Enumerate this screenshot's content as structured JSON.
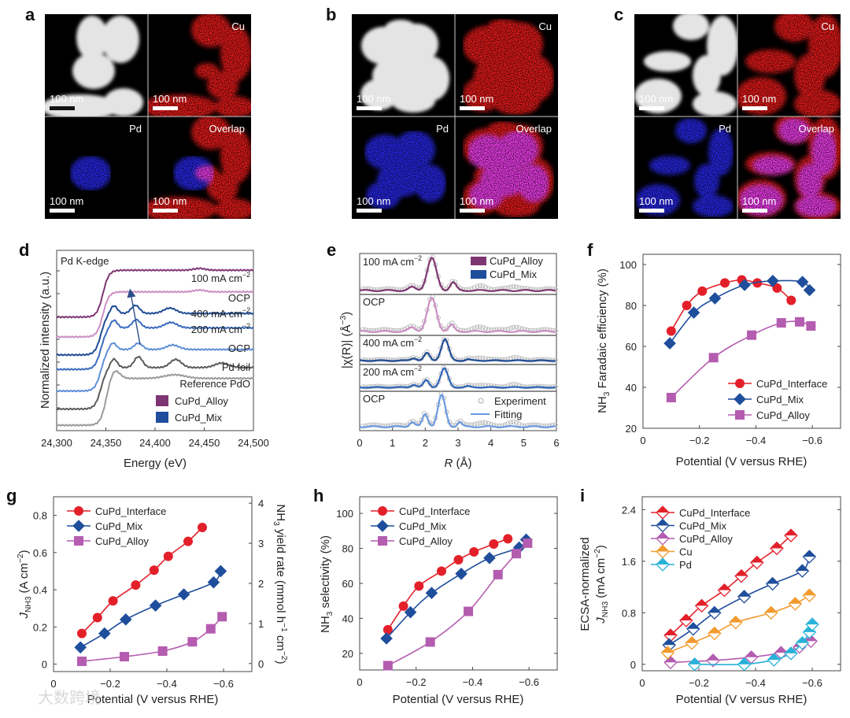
{
  "figure": {
    "panel_letters": {
      "a": "a",
      "b": "b",
      "c": "c",
      "d": "d",
      "e": "e",
      "f": "f",
      "g": "g",
      "h": "h",
      "i": "i"
    },
    "micrographs": [
      {
        "panel": "a",
        "cu_label": "Cu",
        "pd_label": "Pd",
        "overlap_label": "Overlap",
        "scale_bar": "100 nm"
      },
      {
        "panel": "b",
        "cu_label": "Cu",
        "pd_label": "Pd",
        "overlap_label": "Overlap",
        "scale_bar": "100 nm"
      },
      {
        "panel": "c",
        "cu_label": "Cu",
        "pd_label": "Pd",
        "overlap_label": "Overlap",
        "scale_bar": "100 nm"
      }
    ],
    "watermark": "大数跨境"
  },
  "colors": {
    "interface": "#e3202a",
    "mix": "#1f4e9c",
    "alloy": "#b45cb0",
    "cu": "#f39a2e",
    "pd": "#29b2d9"
  },
  "chart_data": [
    {
      "panel": "d",
      "type": "line",
      "title": "",
      "annotation": "Pd K-edge",
      "xlabel": "Energy (eV)",
      "ylabel": "Normalized intensity (a.u.)",
      "xlim": [
        24300,
        24500
      ],
      "ylim": [
        0,
        10
      ],
      "xticks": [
        24300,
        24350,
        24400,
        24450,
        24500
      ],
      "xtick_labels": [
        "24,300",
        "24,350",
        "24,400",
        "24,450",
        "24,500"
      ],
      "series": [
        {
          "name": "CuPd_Alloy 100 mA cm-2",
          "label_parts": [
            {
              "t": "100 mA cm"
            },
            {
              "t": "−2",
              "sup": true
            }
          ],
          "color": "#7e3672",
          "offset": 6.3,
          "step": 2.6,
          "edge": 24347,
          "peaks": [
            [
              24445,
              0.1,
              8
            ]
          ]
        },
        {
          "name": "CuPd_Alloy OCP",
          "label_parts": [
            {
              "t": "OCP"
            }
          ],
          "color": "#cc8fc4",
          "offset": 5.2,
          "step": 2.5,
          "edge": 24347,
          "peaks": [
            [
              24445,
              0.1,
              8
            ]
          ]
        },
        {
          "name": "CuPd_Mix 400 mA cm-2",
          "label_parts": [
            {
              "t": "400 mA cm"
            },
            {
              "t": "−2",
              "sup": true
            }
          ],
          "color": "#1f4c96",
          "offset": 4.2,
          "step": 2.3,
          "edge": 24345,
          "peaks": [
            [
              24358,
              0.45,
              5
            ],
            [
              24380,
              0.45,
              6
            ],
            [
              24415,
              0.3,
              9
            ]
          ]
        },
        {
          "name": "CuPd_Mix 200 mA cm-2",
          "label_parts": [
            {
              "t": "200 mA cm"
            },
            {
              "t": "−2",
              "sup": true
            }
          ],
          "color": "#3a6cc0",
          "offset": 3.4,
          "step": 2.3,
          "edge": 24345,
          "peaks": [
            [
              24358,
              0.45,
              5
            ],
            [
              24381,
              0.45,
              6
            ],
            [
              24416,
              0.3,
              9
            ]
          ]
        },
        {
          "name": "CuPd_Mix OCP",
          "label_parts": [
            {
              "t": "OCP"
            }
          ],
          "color": "#5d8fd8",
          "offset": 2.2,
          "step": 2.3,
          "edge": 24345,
          "peaks": [
            [
              24357,
              0.4,
              5
            ],
            [
              24383,
              0.35,
              6
            ],
            [
              24418,
              0.25,
              9
            ]
          ]
        },
        {
          "name": "Pd foil",
          "label_parts": [
            {
              "t": "Pd foil"
            }
          ],
          "color": "#5a5a5a",
          "offset": 1.2,
          "step": 2.3,
          "edge": 24345,
          "peaks": [
            [
              24358,
              0.5,
              5
            ],
            [
              24383,
              0.6,
              6
            ],
            [
              24421,
              0.45,
              8
            ],
            [
              24468,
              0.25,
              10
            ]
          ]
        },
        {
          "name": "Reference PdO",
          "label_parts": [
            {
              "t": "Reference PdO"
            }
          ],
          "color": "#9a9a9a",
          "offset": 0.3,
          "step": 2.6,
          "edge": 24350,
          "peaks": [
            [
              24359,
              0.5,
              7
            ],
            [
              24420,
              0.2,
              15
            ]
          ]
        }
      ],
      "legend": [
        {
          "label": "CuPd_Alloy",
          "color": "#7e3672"
        },
        {
          "label": "CuPd_Mix",
          "color": "#1f4e9c"
        }
      ]
    },
    {
      "panel": "e",
      "type": "line",
      "title": "",
      "xlabel_parts": [
        {
          "t": "R",
          "it": true
        },
        {
          "t": " (Å)"
        }
      ],
      "ylabel_parts": [
        {
          "t": "|χ(R)| (Å"
        },
        {
          "t": "−3",
          "sup": true
        },
        {
          "t": ")"
        }
      ],
      "xlim": [
        0,
        6
      ],
      "xticks": [
        0,
        1,
        2,
        3,
        4,
        5,
        6
      ],
      "xtick_labels": [
        "0",
        "1",
        "2",
        "3",
        "4",
        "5",
        "6"
      ],
      "series": [
        {
          "name": "CuPd_Alloy 100 mA cm-2",
          "label_parts": [
            {
              "t": "100 mA cm"
            },
            {
              "t": "−2",
              "sup": true
            }
          ],
          "color": "#7e3672",
          "peaks": [
            [
              2.2,
              1.0,
              0.2
            ],
            [
              2.85,
              0.25,
              0.13
            ],
            [
              1.6,
              0.1,
              0.15
            ]
          ]
        },
        {
          "name": "CuPd_Alloy OCP",
          "label_parts": [
            {
              "t": "OCP"
            }
          ],
          "color": "#cc8fc4",
          "peaks": [
            [
              2.2,
              1.0,
              0.2
            ],
            [
              2.8,
              0.2,
              0.12
            ],
            [
              1.6,
              0.12,
              0.15
            ]
          ]
        },
        {
          "name": "CuPd_Mix 400 mA cm-2",
          "label_parts": [
            {
              "t": "400 mA cm"
            },
            {
              "t": "−2",
              "sup": true
            }
          ],
          "color": "#1f4c96",
          "peaks": [
            [
              2.6,
              1.0,
              0.16
            ],
            [
              2.05,
              0.35,
              0.12
            ],
            [
              1.65,
              0.12,
              0.12
            ],
            [
              3.3,
              0.06,
              0.1
            ]
          ]
        },
        {
          "name": "CuPd_Mix 200 mA cm-2",
          "label_parts": [
            {
              "t": "200 mA cm"
            },
            {
              "t": "−2",
              "sup": true
            }
          ],
          "color": "#2f64b8",
          "peaks": [
            [
              2.58,
              1.0,
              0.16
            ],
            [
              2.03,
              0.38,
              0.12
            ],
            [
              1.65,
              0.14,
              0.12
            ],
            [
              3.3,
              0.06,
              0.1
            ]
          ]
        },
        {
          "name": "CuPd_Mix OCP",
          "label_parts": [
            {
              "t": "OCP"
            }
          ],
          "color": "#6a9ae0",
          "peaks": [
            [
              2.5,
              1.0,
              0.16
            ],
            [
              2.0,
              0.4,
              0.12
            ],
            [
              1.6,
              0.15,
              0.12
            ],
            [
              3.05,
              0.15,
              0.1
            ]
          ]
        }
      ],
      "legend": [
        {
          "label": "CuPd_Alloy",
          "color": "#7e3672"
        },
        {
          "label": "CuPd_Mix",
          "color": "#1f4e9c"
        }
      ],
      "legend2": [
        {
          "label": "Experiment",
          "marker": "open-circle"
        },
        {
          "label": "Fitting",
          "marker": "line"
        }
      ]
    },
    {
      "panel": "f",
      "type": "line",
      "title": "",
      "xlabel": "Potential (V versus RHE)",
      "ylabel_parts": [
        {
          "t": "NH"
        },
        {
          "t": "3",
          "sub": true
        },
        {
          "t": " Faradaic efficiency (%)"
        }
      ],
      "xlim": [
        0,
        -0.7
      ],
      "ylim": [
        20,
        105
      ],
      "xticks": [
        0,
        -0.2,
        -0.4,
        -0.6
      ],
      "xtick_labels": [
        "0",
        "−0.2",
        "−0.4",
        "−0.6"
      ],
      "yticks": [
        20,
        40,
        60,
        80,
        100
      ],
      "ytick_labels": [
        "20",
        "40",
        "60",
        "80",
        "100"
      ],
      "legend_position": "bottom-right",
      "series": [
        {
          "name": "CuPd_Interface",
          "marker": "circle",
          "color": "#e3202a",
          "x": [
            -0.1,
            -0.155,
            -0.21,
            -0.29,
            -0.35,
            -0.405,
            -0.475,
            -0.525
          ],
          "y": [
            67.5,
            80,
            87,
            91,
            92.5,
            91,
            88.5,
            82.5
          ]
        },
        {
          "name": "CuPd_Mix",
          "marker": "diamond",
          "color": "#1f4e9c",
          "x": [
            -0.095,
            -0.18,
            -0.255,
            -0.36,
            -0.46,
            -0.565,
            -0.59
          ],
          "y": [
            61.5,
            76.5,
            83.5,
            90,
            92,
            91.5,
            87.5
          ]
        },
        {
          "name": "CuPd_Alloy",
          "marker": "square",
          "color": "#b45cb0",
          "x": [
            -0.1,
            -0.25,
            -0.385,
            -0.49,
            -0.555,
            -0.595
          ],
          "y": [
            35,
            54.5,
            65.5,
            71.5,
            72,
            70
          ]
        }
      ]
    },
    {
      "panel": "g",
      "type": "line",
      "title": "",
      "xlabel": "Potential (V versus RHE)",
      "ylabel_parts": [
        {
          "t": "J",
          "it": true
        },
        {
          "t": "NH3",
          "sub": true
        },
        {
          "t": " (A cm"
        },
        {
          "t": "−2",
          "sup": true
        },
        {
          "t": ")"
        }
      ],
      "y2label_parts": [
        {
          "t": "NH"
        },
        {
          "t": "3",
          "sub": true
        },
        {
          "t": " yield rate (mmol h"
        },
        {
          "t": "−1",
          "sup": true
        },
        {
          "t": " cm"
        },
        {
          "t": "−2",
          "sup": true
        },
        {
          "t": ")"
        }
      ],
      "xlim": [
        0,
        -0.7
      ],
      "ylim": [
        -0.04,
        0.9
      ],
      "y2lim": [
        -0.2,
        4.16
      ],
      "xticks": [
        0,
        -0.2,
        -0.4,
        -0.6
      ],
      "xtick_labels": [
        "0",
        "−0.2",
        "−0.4",
        "−0.6"
      ],
      "yticks": [
        0,
        0.2,
        0.4,
        0.6,
        0.8
      ],
      "ytick_labels": [
        "0",
        "0.2",
        "0.4",
        "0.6",
        "0.8"
      ],
      "y2ticks": [
        0,
        1,
        2,
        3,
        4
      ],
      "y2tick_labels": [
        "0",
        "1",
        "2",
        "3",
        "4"
      ],
      "legend_position": "top-left",
      "series": [
        {
          "name": "CuPd_Interface",
          "marker": "circle",
          "color": "#e3202a",
          "x": [
            -0.1,
            -0.155,
            -0.21,
            -0.29,
            -0.355,
            -0.405,
            -0.475,
            -0.525
          ],
          "y": [
            0.165,
            0.25,
            0.34,
            0.425,
            0.505,
            0.58,
            0.66,
            0.735
          ]
        },
        {
          "name": "CuPd_Mix",
          "marker": "diamond",
          "color": "#1f4e9c",
          "x": [
            -0.095,
            -0.18,
            -0.255,
            -0.36,
            -0.46,
            -0.565,
            -0.59
          ],
          "y": [
            0.09,
            0.165,
            0.24,
            0.315,
            0.375,
            0.44,
            0.5
          ]
        },
        {
          "name": "CuPd_Alloy",
          "marker": "square",
          "color": "#b45cb0",
          "x": [
            -0.1,
            -0.25,
            -0.385,
            -0.49,
            -0.555,
            -0.595
          ],
          "y": [
            0.015,
            0.04,
            0.07,
            0.12,
            0.19,
            0.255
          ]
        }
      ]
    },
    {
      "panel": "h",
      "type": "line",
      "title": "",
      "xlabel": "Potential (V versus RHE)",
      "ylabel_parts": [
        {
          "t": "NH"
        },
        {
          "t": "3",
          "sub": true
        },
        {
          "t": " selectivity (%)"
        }
      ],
      "xlim": [
        0,
        -0.7
      ],
      "ylim": [
        10.5,
        109.5
      ],
      "xticks": [
        0,
        -0.2,
        -0.4,
        -0.6
      ],
      "xtick_labels": [
        "0",
        "−0.2",
        "−0.4",
        "−0.6"
      ],
      "yticks": [
        20,
        40,
        60,
        80,
        100
      ],
      "ytick_labels": [
        "20",
        "40",
        "60",
        "80",
        "100"
      ],
      "legend_position": "top-left",
      "series": [
        {
          "name": "CuPd_Interface",
          "marker": "circle",
          "color": "#e3202a",
          "x": [
            -0.1,
            -0.155,
            -0.21,
            -0.29,
            -0.35,
            -0.405,
            -0.475,
            -0.525
          ],
          "y": [
            33.5,
            47,
            58.5,
            67,
            73.5,
            78,
            82.5,
            85.5
          ]
        },
        {
          "name": "CuPd_Mix",
          "marker": "diamond",
          "color": "#1f4e9c",
          "x": [
            -0.095,
            -0.18,
            -0.255,
            -0.36,
            -0.46,
            -0.565,
            -0.59
          ],
          "y": [
            28.5,
            43.5,
            54.5,
            65.5,
            74.5,
            80.5,
            85
          ]
        },
        {
          "name": "CuPd_Alloy",
          "marker": "square",
          "color": "#b45cb0",
          "x": [
            -0.1,
            -0.25,
            -0.385,
            -0.49,
            -0.555,
            -0.595
          ],
          "y": [
            13,
            26.5,
            44,
            65,
            77,
            83
          ]
        }
      ]
    },
    {
      "panel": "i",
      "type": "line",
      "title": "",
      "xlabel": "Potential (V versus RHE)",
      "ylabel_line1": "ECSA-normalized",
      "ylabel_parts": [
        {
          "t": "J",
          "it": true
        },
        {
          "t": "NH3",
          "sub": true
        },
        {
          "t": " (mA cm"
        },
        {
          "t": "−2",
          "sup": true
        },
        {
          "t": ")"
        }
      ],
      "xlim": [
        0,
        -0.7
      ],
      "ylim": [
        -0.1,
        2.6
      ],
      "xticks": [
        0,
        -0.2,
        -0.4,
        -0.6
      ],
      "xtick_labels": [
        "0",
        "−0.2",
        "−0.4",
        "−0.6"
      ],
      "yticks": [
        0,
        0.8,
        1.6,
        2.4
      ],
      "ytick_labels": [
        "0",
        "0.8",
        "1.6",
        "2.4"
      ],
      "legend_position": "top-left",
      "series": [
        {
          "name": "CuPd_Interface",
          "marker": "half-diamond",
          "color": "#e3202a",
          "x": [
            -0.1,
            -0.155,
            -0.21,
            -0.29,
            -0.35,
            -0.405,
            -0.475,
            -0.525
          ],
          "y": [
            0.45,
            0.68,
            0.91,
            1.15,
            1.37,
            1.58,
            1.8,
            2.0
          ]
        },
        {
          "name": "CuPd_Mix",
          "marker": "half-diamond",
          "color": "#1f4e9c",
          "x": [
            -0.095,
            -0.18,
            -0.255,
            -0.36,
            -0.46,
            -0.565,
            -0.59
          ],
          "y": [
            0.3,
            0.55,
            0.8,
            1.05,
            1.25,
            1.45,
            1.67
          ]
        },
        {
          "name": "CuPd_Alloy",
          "marker": "half-diamond",
          "color": "#b45cb0",
          "x": [
            -0.1,
            -0.25,
            -0.385,
            -0.49,
            -0.555,
            -0.595
          ],
          "y": [
            0.03,
            0.06,
            0.11,
            0.18,
            0.27,
            0.36
          ]
        },
        {
          "name": "Cu",
          "marker": "half-diamond",
          "color": "#f39a2e",
          "x": [
            -0.09,
            -0.175,
            -0.255,
            -0.33,
            -0.455,
            -0.54,
            -0.59
          ],
          "y": [
            0.18,
            0.33,
            0.48,
            0.65,
            0.8,
            0.94,
            1.07
          ]
        },
        {
          "name": "Pd",
          "marker": "half-diamond",
          "color": "#29b2d9",
          "x": [
            -0.185,
            -0.36,
            -0.465,
            -0.525,
            -0.565,
            -0.59,
            -0.6
          ],
          "y": [
            0,
            0,
            0.07,
            0.17,
            0.33,
            0.5,
            0.62
          ]
        }
      ]
    }
  ]
}
